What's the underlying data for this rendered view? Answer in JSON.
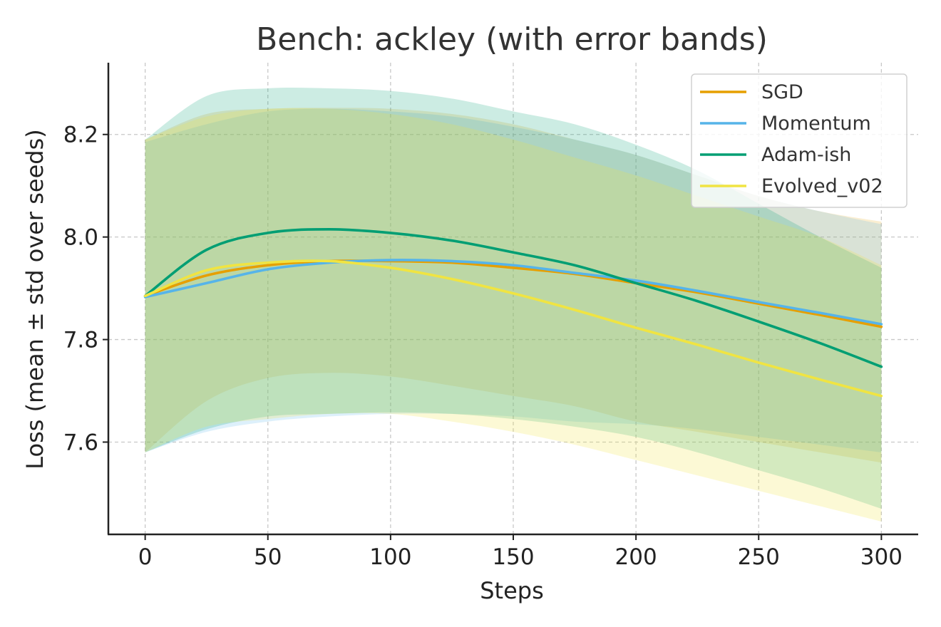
{
  "chart_data": {
    "type": "line",
    "title": "Bench: ackley (with error bands)",
    "xlabel": "Steps",
    "ylabel": "Loss (mean ± std over seeds)",
    "xlim": [
      -15,
      315
    ],
    "ylim": [
      7.42,
      8.34
    ],
    "xticks": [
      0,
      50,
      100,
      150,
      200,
      250,
      300
    ],
    "yticks": [
      7.6,
      7.8,
      8.0,
      8.2
    ],
    "ytick_labels": [
      "7.6",
      "7.8",
      "8.0",
      "8.2"
    ],
    "grid": true,
    "legend_position": "top-right",
    "x": [
      0,
      25,
      50,
      75,
      100,
      125,
      150,
      175,
      200,
      225,
      250,
      275,
      300
    ],
    "series": [
      {
        "name": "SGD",
        "color": "#E69F00",
        "band_opacity": 0.18,
        "mean": [
          7.885,
          7.925,
          7.945,
          7.953,
          7.953,
          7.95,
          7.94,
          7.928,
          7.91,
          7.892,
          7.87,
          7.848,
          7.825
        ],
        "upper": [
          8.19,
          8.24,
          8.25,
          8.252,
          8.25,
          8.24,
          8.22,
          8.19,
          8.16,
          8.12,
          8.08,
          8.05,
          8.03
        ],
        "lower": [
          7.58,
          7.68,
          7.725,
          7.735,
          7.728,
          7.71,
          7.69,
          7.67,
          7.64,
          7.62,
          7.6,
          7.58,
          7.56
        ]
      },
      {
        "name": "Momentum",
        "color": "#56B4E9",
        "band_opacity": 0.2,
        "mean": [
          7.883,
          7.91,
          7.937,
          7.95,
          7.955,
          7.953,
          7.945,
          7.93,
          7.915,
          7.895,
          7.873,
          7.852,
          7.83
        ],
        "upper": [
          8.185,
          8.22,
          8.245,
          8.25,
          8.245,
          8.235,
          8.215,
          8.19,
          8.16,
          8.12,
          8.08,
          8.05,
          8.025
        ],
        "lower": [
          7.58,
          7.62,
          7.64,
          7.65,
          7.655,
          7.655,
          7.65,
          7.64,
          7.635,
          7.625,
          7.61,
          7.595,
          7.58
        ]
      },
      {
        "name": "Adam-ish",
        "color": "#009E73",
        "band_opacity": 0.2,
        "mean": [
          7.885,
          7.975,
          8.008,
          8.015,
          8.008,
          7.993,
          7.97,
          7.945,
          7.91,
          7.875,
          7.835,
          7.793,
          7.747
        ],
        "upper": [
          8.19,
          8.275,
          8.29,
          8.29,
          8.285,
          8.27,
          8.245,
          8.22,
          8.18,
          8.13,
          8.065,
          8.0,
          7.94
        ],
        "lower": [
          7.58,
          7.625,
          7.65,
          7.655,
          7.658,
          7.655,
          7.645,
          7.63,
          7.61,
          7.58,
          7.545,
          7.51,
          7.47
        ]
      },
      {
        "name": "Evolved_v02",
        "color": "#F0E442",
        "band_opacity": 0.22,
        "mean": [
          7.885,
          7.935,
          7.95,
          7.953,
          7.94,
          7.918,
          7.89,
          7.858,
          7.823,
          7.79,
          7.755,
          7.722,
          7.69
        ],
        "upper": [
          8.19,
          8.235,
          8.25,
          8.25,
          8.24,
          8.22,
          8.19,
          8.155,
          8.12,
          8.08,
          8.04,
          8.0,
          7.945
        ],
        "lower": [
          7.58,
          7.63,
          7.645,
          7.655,
          7.655,
          7.64,
          7.62,
          7.595,
          7.565,
          7.535,
          7.505,
          7.475,
          7.445
        ]
      }
    ]
  }
}
